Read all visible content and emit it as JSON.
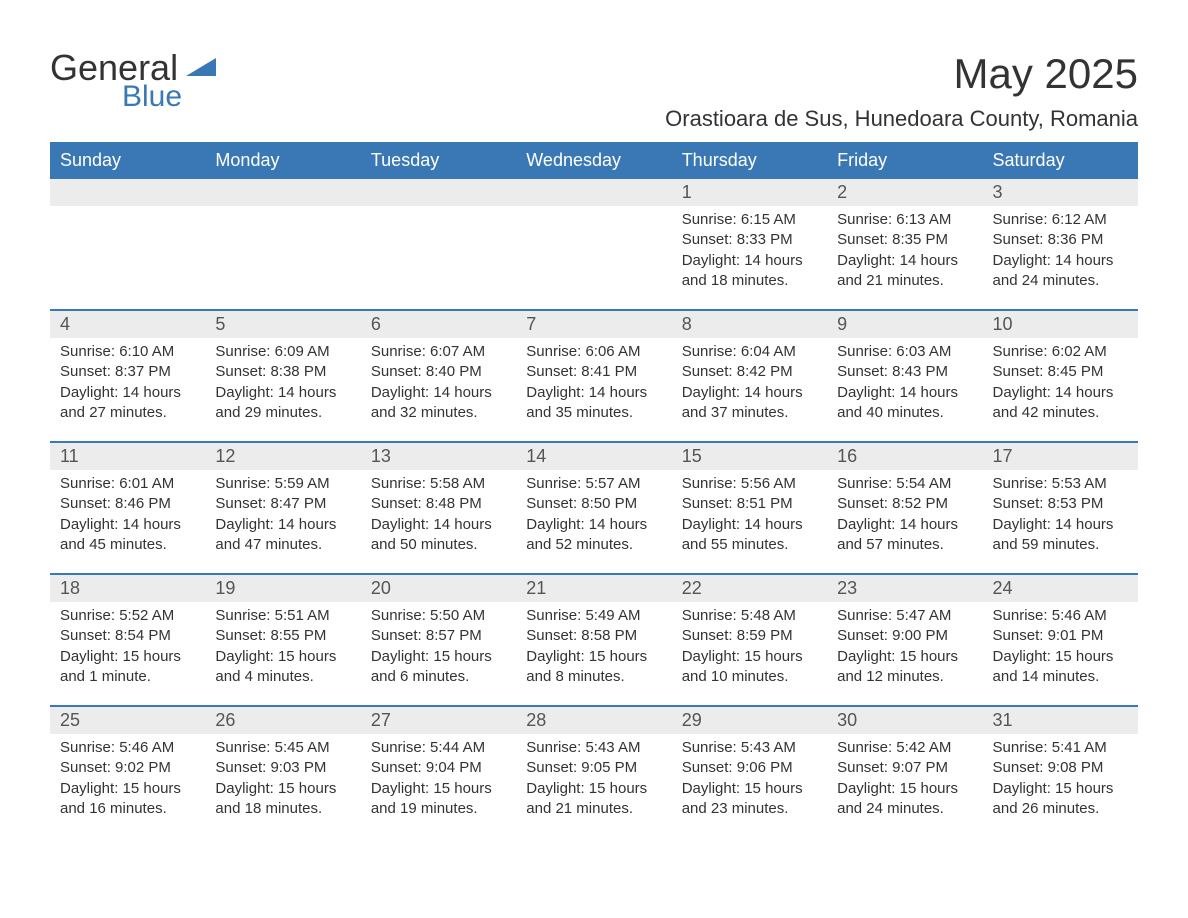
{
  "brand": {
    "text_general": "General",
    "text_blue": "Blue",
    "icon_color": "#3a78b5"
  },
  "title": "May 2025",
  "location": "Orastioara de Sus, Hunedoara County, Romania",
  "colors": {
    "header_bg": "#3a78b5",
    "header_text": "#ffffff",
    "daynum_bg": "#ececec",
    "body_text": "#333333",
    "rule": "#3a78b5",
    "page_bg": "#ffffff"
  },
  "day_headers": [
    "Sunday",
    "Monday",
    "Tuesday",
    "Wednesday",
    "Thursday",
    "Friday",
    "Saturday"
  ],
  "weeks": [
    [
      {
        "blank": true
      },
      {
        "blank": true
      },
      {
        "blank": true
      },
      {
        "blank": true
      },
      {
        "n": "1",
        "sunrise": "Sunrise: 6:15 AM",
        "sunset": "Sunset: 8:33 PM",
        "daylight": "Daylight: 14 hours and 18 minutes."
      },
      {
        "n": "2",
        "sunrise": "Sunrise: 6:13 AM",
        "sunset": "Sunset: 8:35 PM",
        "daylight": "Daylight: 14 hours and 21 minutes."
      },
      {
        "n": "3",
        "sunrise": "Sunrise: 6:12 AM",
        "sunset": "Sunset: 8:36 PM",
        "daylight": "Daylight: 14 hours and 24 minutes."
      }
    ],
    [
      {
        "n": "4",
        "sunrise": "Sunrise: 6:10 AM",
        "sunset": "Sunset: 8:37 PM",
        "daylight": "Daylight: 14 hours and 27 minutes."
      },
      {
        "n": "5",
        "sunrise": "Sunrise: 6:09 AM",
        "sunset": "Sunset: 8:38 PM",
        "daylight": "Daylight: 14 hours and 29 minutes."
      },
      {
        "n": "6",
        "sunrise": "Sunrise: 6:07 AM",
        "sunset": "Sunset: 8:40 PM",
        "daylight": "Daylight: 14 hours and 32 minutes."
      },
      {
        "n": "7",
        "sunrise": "Sunrise: 6:06 AM",
        "sunset": "Sunset: 8:41 PM",
        "daylight": "Daylight: 14 hours and 35 minutes."
      },
      {
        "n": "8",
        "sunrise": "Sunrise: 6:04 AM",
        "sunset": "Sunset: 8:42 PM",
        "daylight": "Daylight: 14 hours and 37 minutes."
      },
      {
        "n": "9",
        "sunrise": "Sunrise: 6:03 AM",
        "sunset": "Sunset: 8:43 PM",
        "daylight": "Daylight: 14 hours and 40 minutes."
      },
      {
        "n": "10",
        "sunrise": "Sunrise: 6:02 AM",
        "sunset": "Sunset: 8:45 PM",
        "daylight": "Daylight: 14 hours and 42 minutes."
      }
    ],
    [
      {
        "n": "11",
        "sunrise": "Sunrise: 6:01 AM",
        "sunset": "Sunset: 8:46 PM",
        "daylight": "Daylight: 14 hours and 45 minutes."
      },
      {
        "n": "12",
        "sunrise": "Sunrise: 5:59 AM",
        "sunset": "Sunset: 8:47 PM",
        "daylight": "Daylight: 14 hours and 47 minutes."
      },
      {
        "n": "13",
        "sunrise": "Sunrise: 5:58 AM",
        "sunset": "Sunset: 8:48 PM",
        "daylight": "Daylight: 14 hours and 50 minutes."
      },
      {
        "n": "14",
        "sunrise": "Sunrise: 5:57 AM",
        "sunset": "Sunset: 8:50 PM",
        "daylight": "Daylight: 14 hours and 52 minutes."
      },
      {
        "n": "15",
        "sunrise": "Sunrise: 5:56 AM",
        "sunset": "Sunset: 8:51 PM",
        "daylight": "Daylight: 14 hours and 55 minutes."
      },
      {
        "n": "16",
        "sunrise": "Sunrise: 5:54 AM",
        "sunset": "Sunset: 8:52 PM",
        "daylight": "Daylight: 14 hours and 57 minutes."
      },
      {
        "n": "17",
        "sunrise": "Sunrise: 5:53 AM",
        "sunset": "Sunset: 8:53 PM",
        "daylight": "Daylight: 14 hours and 59 minutes."
      }
    ],
    [
      {
        "n": "18",
        "sunrise": "Sunrise: 5:52 AM",
        "sunset": "Sunset: 8:54 PM",
        "daylight": "Daylight: 15 hours and 1 minute."
      },
      {
        "n": "19",
        "sunrise": "Sunrise: 5:51 AM",
        "sunset": "Sunset: 8:55 PM",
        "daylight": "Daylight: 15 hours and 4 minutes."
      },
      {
        "n": "20",
        "sunrise": "Sunrise: 5:50 AM",
        "sunset": "Sunset: 8:57 PM",
        "daylight": "Daylight: 15 hours and 6 minutes."
      },
      {
        "n": "21",
        "sunrise": "Sunrise: 5:49 AM",
        "sunset": "Sunset: 8:58 PM",
        "daylight": "Daylight: 15 hours and 8 minutes."
      },
      {
        "n": "22",
        "sunrise": "Sunrise: 5:48 AM",
        "sunset": "Sunset: 8:59 PM",
        "daylight": "Daylight: 15 hours and 10 minutes."
      },
      {
        "n": "23",
        "sunrise": "Sunrise: 5:47 AM",
        "sunset": "Sunset: 9:00 PM",
        "daylight": "Daylight: 15 hours and 12 minutes."
      },
      {
        "n": "24",
        "sunrise": "Sunrise: 5:46 AM",
        "sunset": "Sunset: 9:01 PM",
        "daylight": "Daylight: 15 hours and 14 minutes."
      }
    ],
    [
      {
        "n": "25",
        "sunrise": "Sunrise: 5:46 AM",
        "sunset": "Sunset: 9:02 PM",
        "daylight": "Daylight: 15 hours and 16 minutes."
      },
      {
        "n": "26",
        "sunrise": "Sunrise: 5:45 AM",
        "sunset": "Sunset: 9:03 PM",
        "daylight": "Daylight: 15 hours and 18 minutes."
      },
      {
        "n": "27",
        "sunrise": "Sunrise: 5:44 AM",
        "sunset": "Sunset: 9:04 PM",
        "daylight": "Daylight: 15 hours and 19 minutes."
      },
      {
        "n": "28",
        "sunrise": "Sunrise: 5:43 AM",
        "sunset": "Sunset: 9:05 PM",
        "daylight": "Daylight: 15 hours and 21 minutes."
      },
      {
        "n": "29",
        "sunrise": "Sunrise: 5:43 AM",
        "sunset": "Sunset: 9:06 PM",
        "daylight": "Daylight: 15 hours and 23 minutes."
      },
      {
        "n": "30",
        "sunrise": "Sunrise: 5:42 AM",
        "sunset": "Sunset: 9:07 PM",
        "daylight": "Daylight: 15 hours and 24 minutes."
      },
      {
        "n": "31",
        "sunrise": "Sunrise: 5:41 AM",
        "sunset": "Sunset: 9:08 PM",
        "daylight": "Daylight: 15 hours and 26 minutes."
      }
    ]
  ]
}
